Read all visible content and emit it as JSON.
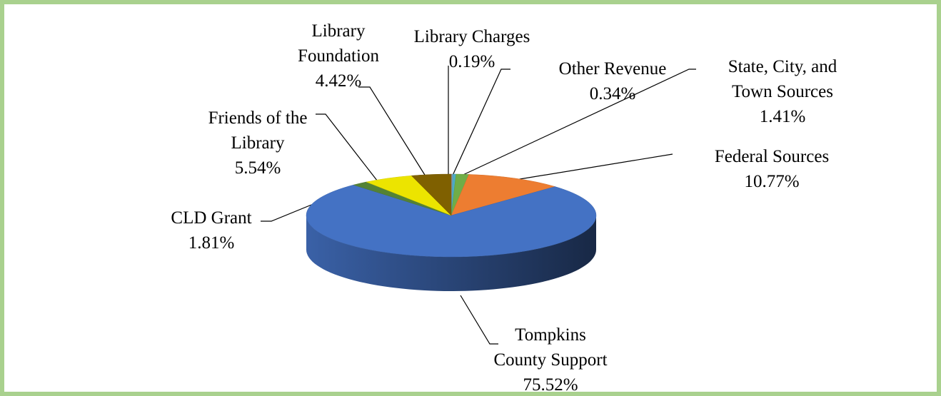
{
  "chart_data": {
    "type": "pie",
    "categories": [
      "Library Charges",
      "Other Revenue",
      "State, City, and\nTown Sources",
      "Federal Sources",
      "Tompkins\nCounty Support",
      "CLD Grant",
      "Friends of the\nLibrary",
      "Library\nFoundation"
    ],
    "values": [
      0.19,
      0.34,
      1.41,
      10.77,
      75.52,
      1.81,
      5.54,
      4.42
    ],
    "value_labels": [
      "0.19%",
      "0.34%",
      "1.41%",
      "10.77%",
      "75.52%",
      "1.81%",
      "5.54%",
      "4.42%"
    ],
    "colors": [
      "#8497b0",
      "#4bacc6",
      "#70ad47",
      "#ed7d31",
      "#4472c4",
      "#548235",
      "#ece400",
      "#7f6000"
    ]
  }
}
